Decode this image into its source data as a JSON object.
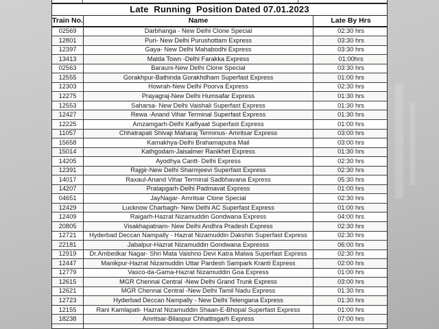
{
  "title": "Late  Running  Position Dated 07.01.2023",
  "columns": [
    "Train No.",
    "Name",
    "Late By Hrs"
  ],
  "rows": [
    {
      "train_no": "02569",
      "name": "Darbhanga - New Delhi Clone Special",
      "late_by": "02:30 hrs"
    },
    {
      "train_no": "12801",
      "name": "Puri- New Delhi Purushottam Express",
      "late_by": "03:30 hrs"
    },
    {
      "train_no": "12397",
      "name": "Gaya- New Delhi Mahabodhi Express",
      "late_by": "03:30 hrs"
    },
    {
      "train_no": "13413",
      "name": "Malda Town -Delhi Farakka Express",
      "late_by": "01:00hrs"
    },
    {
      "train_no": "02563",
      "name": "Barauni-New Delhi Clone Special",
      "late_by": "03:30 hrs"
    },
    {
      "train_no": "12555",
      "name": "Gorakhpur-Bathinda Gorakhdham Superfast Express",
      "late_by": "01:00 hrs"
    },
    {
      "train_no": "12303",
      "name": "Howrah-New Delhi Poorva Express",
      "late_by": "02:30 hrs"
    },
    {
      "train_no": "12275",
      "name": "Prayagraj-New Delhi Humsafar Express",
      "late_by": "01:30 hrs"
    },
    {
      "train_no": "12553",
      "name": "Saharsa- New Delhi Vaishali Superfast Express",
      "late_by": "01:30 hrs"
    },
    {
      "train_no": "12427",
      "name": "Rewa -Anand Vihar Terminal Superfast Express",
      "late_by": "01:30 hrs"
    },
    {
      "train_no": "12225",
      "name": "Amzamgarh-Delhi Kaifiyaat Superfast Express",
      "late_by": "01:00 hrs"
    },
    {
      "train_no": "11057",
      "name": "Chhatrapati Shivaji Maharaj Terminus- Amritsar Express",
      "late_by": "03:00 hrs"
    },
    {
      "train_no": "15658",
      "name": "Kamakhya-Delhi Brahamaputra Mail",
      "late_by": "03:00 hrs"
    },
    {
      "train_no": "15014",
      "name": "Kathgodam-Jaisalmer Ranikhet Express",
      "late_by": "01:30 hrs"
    },
    {
      "train_no": "14205",
      "name": "Ayodhya Cantt- Delhi Express",
      "late_by": "02:30 hrs"
    },
    {
      "train_no": "12391",
      "name": "Rajgir-New Delhi Sharmjeevi Superfast Express",
      "late_by": "02:30 hrs"
    },
    {
      "train_no": "14017",
      "name": "Raxaul-Anand Vihar Terminal Sadbhavana Express",
      "late_by": "05:30 hrs"
    },
    {
      "train_no": "14207",
      "name": "Pratapgarh-Delhi Padmavat Express",
      "late_by": "01:00 hrs"
    },
    {
      "train_no": "04651",
      "name": "JayNagar- Amritsar Clone Special",
      "late_by": "02:30 hrs"
    },
    {
      "train_no": "12429",
      "name": "Lucknow Charbagh- New Delhi AC Superfast Express",
      "late_by": "01:00 hrs"
    },
    {
      "train_no": "12409",
      "name": "Raigarh-Hazrat Nizamuddin Gondwana Express",
      "late_by": "04:00 hrs"
    },
    {
      "train_no": "20805",
      "name": "Visakhapatnam- New Delhi Andhra Pradesh Express",
      "late_by": "02:30 hrs"
    },
    {
      "train_no": "12721",
      "name": "Hyderbad Deccan Nampally - Hazrat Nizamuddin Dakshin Superfast Express",
      "late_by": "02:30 hrs"
    },
    {
      "train_no": "22181",
      "name": "Jabalpur-Hazrat Nizamuddin Gondwana Expresss",
      "late_by": "06:00 hrs"
    },
    {
      "train_no": "12919",
      "name": "Dr.Ambedkar Nagar- Shri Mata Vaishno Devi Katra Malwa Superfast Express",
      "late_by": "02:30 hrs"
    },
    {
      "train_no": "12447",
      "name": "Manikpur-Hazrat Nizamuddin Uttar Pardesh Sampark Kranti Express",
      "late_by": "02:00 hrs"
    },
    {
      "train_no": "12779",
      "name": "Vasco-da-Gama-Hazrat Nizamuddin Goa Express",
      "late_by": "01:00 hrs"
    },
    {
      "train_no": "12615",
      "name": "MGR Chennai Central -New Delhi Grand Trunk Express",
      "late_by": "03:00 hrs"
    },
    {
      "train_no": "12621",
      "name": "MGR Chennai Central -New Delhi Tamil Nadu Express",
      "late_by": "01:30 hrs"
    },
    {
      "train_no": "12723",
      "name": "Hyderbad Deccan Nampally - New Delhi Telengana Express",
      "late_by": "01:30 hrs"
    },
    {
      "train_no": "12155",
      "name": "Rani Kamlapati- Hazrat Nizamuddin Shaan-E-Bhopal Superfast Express",
      "late_by": "01:00 hrs"
    },
    {
      "train_no": "18238",
      "name": "Amritsar-Bilaspur Chhattisgarh Express",
      "late_by": "07:00 hrs"
    }
  ],
  "colors": {
    "background_gray": "#c4c4c4",
    "table_background": "#ffffff",
    "border": "#2a2a2a",
    "text": "#1b1b1b"
  }
}
